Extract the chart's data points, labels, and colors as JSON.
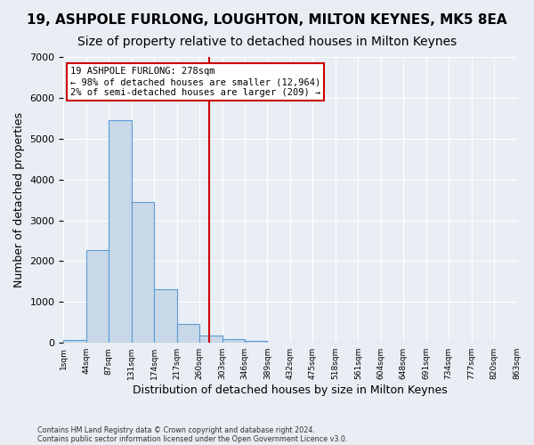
{
  "title": "19, ASHPOLE FURLONG, LOUGHTON, MILTON KEYNES, MK5 8EA",
  "subtitle": "Size of property relative to detached houses in Milton Keynes",
  "xlabel": "Distribution of detached houses by size in Milton Keynes",
  "ylabel": "Number of detached properties",
  "footnote1": "Contains HM Land Registry data © Crown copyright and database right 2024.",
  "footnote2": "Contains public sector information licensed under the Open Government Licence v3.0.",
  "bar_color": "#c8d8e8",
  "bar_edge_color": "#5b9bd5",
  "bin_labels": [
    "1sqm",
    "44sqm",
    "87sqm",
    "131sqm",
    "174sqm",
    "217sqm",
    "260sqm",
    "303sqm",
    "346sqm",
    "389sqm",
    "432sqm",
    "475sqm",
    "518sqm",
    "561sqm",
    "604sqm",
    "648sqm",
    "691sqm",
    "734sqm",
    "777sqm",
    "820sqm",
    "863sqm"
  ],
  "bar_heights": [
    70,
    2280,
    5450,
    3450,
    1320,
    470,
    170,
    90,
    55,
    15,
    5,
    2,
    1,
    0,
    0,
    0,
    0,
    0,
    0,
    0
  ],
  "annotation_text": "19 ASHPOLE FURLONG: 278sqm\n← 98% of detached houses are smaller (12,964)\n2% of semi-detached houses are larger (209) →",
  "annotation_box_color": "#ffffff",
  "annotation_box_edge": "#cc0000",
  "vline_color": "#cc0000",
  "ylim": [
    0,
    7000
  ],
  "background_color": "#e8eef4",
  "grid_color": "#ffffff",
  "title_fontsize": 11,
  "subtitle_fontsize": 10,
  "axis_fontsize": 9
}
